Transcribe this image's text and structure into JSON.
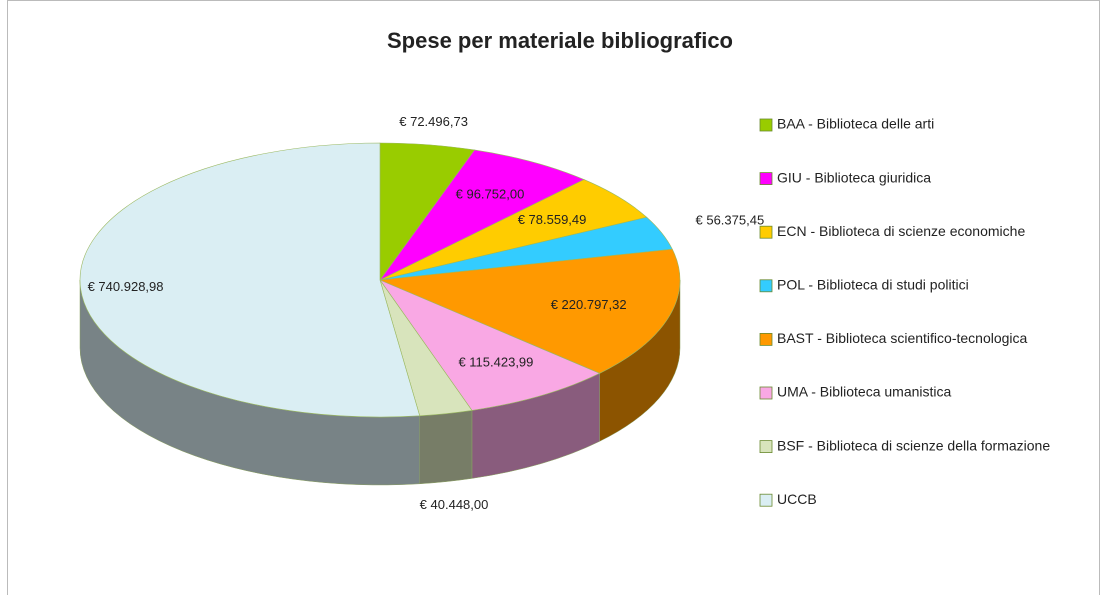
{
  "chart_data": {
    "type": "pie",
    "title": "Spese per materiale bibliografico",
    "categories": [
      "BAA - Biblioteca delle arti",
      "GIU - Biblioteca giuridica",
      "ECN - Biblioteca di scienze economiche",
      "POL - Biblioteca di studi politici",
      "BAST - Biblioteca scientifico-tecnologica",
      "UMA - Biblioteca umanistica",
      "BSF - Biblioteca di scienze della formazione",
      "UCCB"
    ],
    "values": [
      72496.73,
      96752.0,
      78559.49,
      56375.45,
      220797.32,
      115423.99,
      40448.0,
      740928.98
    ],
    "value_labels": [
      "€ 72.496,73",
      "€ 96.752,00",
      "€ 78.559,49",
      "€ 56.375,45",
      "€ 220.797,32",
      "€ 115.423,99",
      "€ 40.448,00",
      "€ 740.928,98"
    ],
    "colors": [
      "#99cc00",
      "#ff00ff",
      "#ffcc00",
      "#33ccff",
      "#ff9900",
      "#f9a8e4",
      "#d8e4bc",
      "#daeef3"
    ],
    "legend": "right"
  }
}
